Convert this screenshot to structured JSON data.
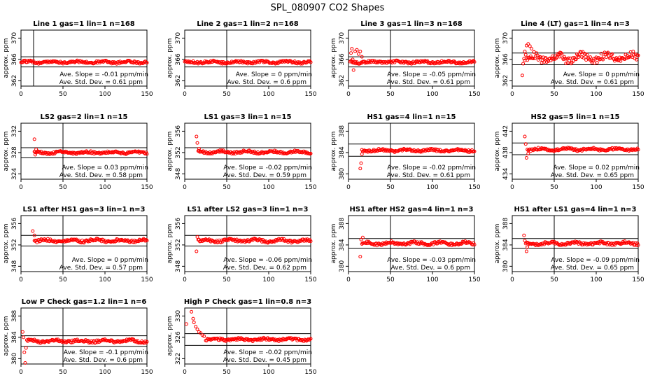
{
  "figure": {
    "title": "SPL_080907  CO2 Shapes"
  },
  "chart_data": [
    {
      "type": "scatter",
      "title": "Line 1 gas=1 lin=1 n=168",
      "ylabel": "approx. ppm",
      "xlim": [
        0,
        150
      ],
      "ylim": [
        361,
        371.5
      ],
      "xticks": [
        0,
        50,
        100,
        150
      ],
      "yticks": [
        362,
        366,
        370
      ],
      "vline": 15,
      "hlines": [
        366.5,
        364.6
      ],
      "slope": "Ave. Slope =  -0.01  ppm/min",
      "std": "Ave. Std. Dev. =  0.61  ppm",
      "shape": {
        "start": 0,
        "end": 150,
        "base": 365.5,
        "noise": 0.25,
        "spikes": []
      }
    },
    {
      "type": "scatter",
      "title": "Line 2 gas=1 lin=2 n=168",
      "ylabel": "approx. ppm",
      "xlim": [
        0,
        150
      ],
      "ylim": [
        361,
        371.5
      ],
      "xticks": [
        0,
        50,
        100,
        150
      ],
      "yticks": [
        362,
        366,
        370
      ],
      "vline": 50,
      "hlines": [
        366.5,
        364.6
      ],
      "slope": "Ave. Slope =  0  ppm/min",
      "std": "Ave. Std. Dev. =  0.6  ppm",
      "shape": {
        "start": 0,
        "end": 150,
        "base": 365.5,
        "noise": 0.25,
        "spikes": []
      }
    },
    {
      "type": "scatter",
      "title": "Line 3 gas=1 lin=3 n=168",
      "ylabel": "approx. ppm",
      "xlim": [
        0,
        150
      ],
      "ylim": [
        361,
        371.5
      ],
      "xticks": [
        0,
        50,
        100,
        150
      ],
      "yticks": [
        362,
        366,
        370
      ],
      "vline": 50,
      "hlines": [
        366.5,
        364.6
      ],
      "slope": "Ave. Slope =  -0.05  ppm/min",
      "std": "Ave. Std. Dev. =  0.61  ppm",
      "shape": {
        "start": 2,
        "end": 150,
        "base": 365.5,
        "noise": 0.25,
        "spikes": [
          [
            3,
            367.2
          ],
          [
            4,
            368.0
          ],
          [
            5,
            366.0
          ],
          [
            6,
            364.0
          ],
          [
            8,
            367.5
          ],
          [
            10,
            367.8
          ],
          [
            12,
            367.0
          ],
          [
            14,
            367.5
          ],
          [
            16,
            366.5
          ]
        ]
      }
    },
    {
      "type": "scatter",
      "title": "Line 4 (LT) gas=1 lin=4 n=3",
      "ylabel": "approx. ppm",
      "xlim": [
        0,
        150
      ],
      "ylim": [
        361,
        371.5
      ],
      "xticks": [
        0,
        50,
        100,
        150
      ],
      "yticks": [
        362,
        366,
        370
      ],
      "vline": 50,
      "hlines": [
        367.2,
        365.0
      ],
      "slope": "Ave. Slope =  0  ppm/min",
      "std": "Ave. Std. Dev. =  0.61  ppm",
      "shape": {
        "start": 14,
        "end": 150,
        "base": 366.3,
        "noise": 0.9,
        "spikes": [
          [
            12,
            363.0
          ],
          [
            13,
            365.2
          ],
          [
            15,
            367.5
          ],
          [
            17,
            368.6
          ],
          [
            19,
            368.9
          ],
          [
            21,
            368.5
          ],
          [
            23,
            368.0
          ],
          [
            26,
            367.4
          ]
        ]
      }
    },
    {
      "type": "scatter",
      "title": "LS2 gas=2 lin=1 n=15",
      "ylabel": "approx. ppm",
      "xlim": [
        0,
        150
      ],
      "ylim": [
        323,
        333.5
      ],
      "xticks": [
        0,
        50,
        100,
        150
      ],
      "yticks": [
        324,
        328,
        332
      ],
      "vline": 50,
      "hlines": [
        328.9,
        327.0
      ],
      "slope": "Ave. Slope =  0.03  ppm/min",
      "std": "Ave. Std. Dev. =  0.58  ppm",
      "shape": {
        "start": 16,
        "end": 150,
        "base": 328.0,
        "noise": 0.25,
        "spikes": [
          [
            16,
            330.5
          ],
          [
            17,
            327.6
          ],
          [
            18,
            328.6
          ],
          [
            20,
            328.2
          ]
        ]
      }
    },
    {
      "type": "scatter",
      "title": "LS1 gas=3 lin=1 n=15",
      "ylabel": "approx. ppm",
      "xlim": [
        0,
        150
      ],
      "ylim": [
        347,
        357.5
      ],
      "xticks": [
        0,
        50,
        100,
        150
      ],
      "yticks": [
        348,
        352,
        356
      ],
      "vline": 50,
      "hlines": [
        352.9,
        350.8
      ],
      "slope": "Ave. Slope =  -0.02  ppm/min",
      "std": "Ave. Std. Dev. =  0.59  ppm",
      "shape": {
        "start": 16,
        "end": 150,
        "base": 352.1,
        "noise": 0.25,
        "spikes": [
          [
            14,
            355.0
          ],
          [
            15,
            353.8
          ],
          [
            17,
            352.7
          ]
        ]
      }
    },
    {
      "type": "scatter",
      "title": "HS1 gas=4 lin=1 n=15",
      "ylabel": "approx. ppm",
      "xlim": [
        0,
        150
      ],
      "ylim": [
        379,
        389.5
      ],
      "xticks": [
        0,
        50,
        100,
        150
      ],
      "yticks": [
        380,
        384,
        388
      ],
      "vline": 50,
      "hlines": [
        385.6,
        383.3
      ],
      "slope": "Ave. Slope =  -0.02  ppm/min",
      "std": "Ave. Std. Dev. =  0.61  ppm",
      "shape": {
        "start": 16,
        "end": 150,
        "base": 384.4,
        "noise": 0.25,
        "spikes": [
          [
            14,
            381.0
          ],
          [
            15,
            382.0
          ],
          [
            16,
            383.7
          ]
        ]
      }
    },
    {
      "type": "scatter",
      "title": "HS2 gas=5 lin=1 n=15",
      "ylabel": "approx. ppm",
      "xlim": [
        0,
        150
      ],
      "ylim": [
        433,
        443.5
      ],
      "xticks": [
        0,
        50,
        100,
        150
      ],
      "yticks": [
        434,
        438,
        442
      ],
      "vline": 50,
      "hlines": [
        439.8,
        437.6
      ],
      "slope": "Ave. Slope =  0.02  ppm/min",
      "std": "Ave. Std. Dev. =  0.65  ppm",
      "shape": {
        "start": 18,
        "end": 150,
        "base": 438.6,
        "noise": 0.25,
        "spikes": [
          [
            15,
            441.0
          ],
          [
            16,
            439.6
          ],
          [
            17,
            437.0
          ],
          [
            19,
            437.8
          ]
        ]
      }
    },
    {
      "type": "scatter",
      "title": "LS1 after HS1 gas=3 lin=1 n=3",
      "ylabel": "approx. ppm",
      "xlim": [
        0,
        150
      ],
      "ylim": [
        347,
        357.5
      ],
      "xticks": [
        0,
        50,
        100,
        150
      ],
      "yticks": [
        348,
        352,
        356
      ],
      "vline": 50,
      "hlines": [
        353.8,
        351.8
      ],
      "slope": "Ave. Slope =  0  ppm/min",
      "std": "Ave. Std. Dev. =  0.57  ppm",
      "shape": {
        "start": 16,
        "end": 150,
        "base": 352.8,
        "noise": 0.3,
        "spikes": [
          [
            14,
            354.6
          ],
          [
            16,
            353.8
          ]
        ]
      }
    },
    {
      "type": "scatter",
      "title": "LS1 after LS2 gas=3 lin=1 n=3",
      "ylabel": "approx. ppm",
      "xlim": [
        0,
        150
      ],
      "ylim": [
        347,
        357.5
      ],
      "xticks": [
        0,
        50,
        100,
        150
      ],
      "yticks": [
        348,
        352,
        356
      ],
      "vline": 50,
      "hlines": [
        353.8,
        351.8
      ],
      "slope": "Ave. Slope =  -0.06  ppm/min",
      "std": "Ave. Std. Dev. =  0.62  ppm",
      "shape": {
        "start": 16,
        "end": 150,
        "base": 352.8,
        "noise": 0.3,
        "spikes": [
          [
            14,
            350.8
          ],
          [
            15,
            353.5
          ]
        ]
      }
    },
    {
      "type": "scatter",
      "title": "HS1 after HS2 gas=4 lin=1 n=3",
      "ylabel": "approx. ppm",
      "xlim": [
        0,
        150
      ],
      "ylim": [
        379,
        389.5
      ],
      "xticks": [
        0,
        50,
        100,
        150
      ],
      "yticks": [
        380,
        384,
        388
      ],
      "vline": 50,
      "hlines": [
        385.2,
        383.4
      ],
      "slope": "Ave. Slope =  -0.03  ppm/min",
      "std": "Ave. Std. Dev. =  0.6  ppm",
      "shape": {
        "start": 16,
        "end": 150,
        "base": 384.3,
        "noise": 0.3,
        "spikes": [
          [
            14,
            381.8
          ],
          [
            15,
            385.0
          ],
          [
            17,
            385.4
          ]
        ]
      }
    },
    {
      "type": "scatter",
      "title": "HS1 after LS1 gas=4 lin=1 n=3",
      "ylabel": "approx. ppm",
      "xlim": [
        0,
        150
      ],
      "ylim": [
        379,
        389.5
      ],
      "xticks": [
        0,
        50,
        100,
        150
      ],
      "yticks": [
        380,
        384,
        388
      ],
      "vline": 50,
      "hlines": [
        385.2,
        383.4
      ],
      "slope": "Ave. Slope =  -0.09  ppm/min",
      "std": "Ave. Std. Dev. =  0.65  ppm",
      "shape": {
        "start": 16,
        "end": 150,
        "base": 384.3,
        "noise": 0.3,
        "spikes": [
          [
            14,
            385.8
          ],
          [
            15,
            384.8
          ],
          [
            17,
            382.8
          ],
          [
            18,
            383.6
          ]
        ]
      }
    },
    {
      "type": "scatter",
      "title": "Low P Check gas=1.2 lin=1 n=6",
      "ylabel": "approx. ppm",
      "xlim": [
        0,
        150
      ],
      "ylim": [
        379,
        389.5
      ],
      "xticks": [
        0,
        50,
        100,
        150
      ],
      "yticks": [
        380,
        384,
        388
      ],
      "vline": 50,
      "hlines": [
        384.3,
        382.3
      ],
      "slope": "Ave. Slope =  -0.1  ppm/min",
      "std": "Ave. Std. Dev. =  0.6  ppm",
      "shape": {
        "start": 8,
        "end": 150,
        "base": 383.3,
        "noise": 0.3,
        "spikes": [
          [
            2,
            385.0
          ],
          [
            3,
            384.0
          ],
          [
            4,
            381.2
          ],
          [
            5,
            379.2
          ],
          [
            6,
            382.0
          ],
          [
            7,
            383.5
          ]
        ]
      }
    },
    {
      "type": "scatter",
      "title": "High P Check gas=1 lin=0.8 n=3",
      "ylabel": "approx. ppm",
      "xlim": [
        0,
        150
      ],
      "ylim": [
        321,
        331.5
      ],
      "xticks": [
        0,
        50,
        100,
        150
      ],
      "yticks": [
        322,
        326,
        330
      ],
      "vline": 50,
      "hlines": [
        326.7,
        324.5
      ],
      "slope": "Ave. Slope =  -0.02  ppm/min",
      "std": "Ave. Std. Dev. =  0.45  ppm",
      "shape": {
        "start": 25,
        "end": 150,
        "base": 325.6,
        "noise": 0.25,
        "spikes": [
          [
            2,
            328.5
          ],
          [
            8,
            330.8
          ],
          [
            10,
            329.5
          ],
          [
            11,
            328.8
          ],
          [
            13,
            328.0
          ],
          [
            15,
            327.5
          ],
          [
            17,
            327.0
          ],
          [
            19,
            326.8
          ],
          [
            21,
            326.4
          ],
          [
            23,
            326.2
          ]
        ]
      }
    }
  ]
}
